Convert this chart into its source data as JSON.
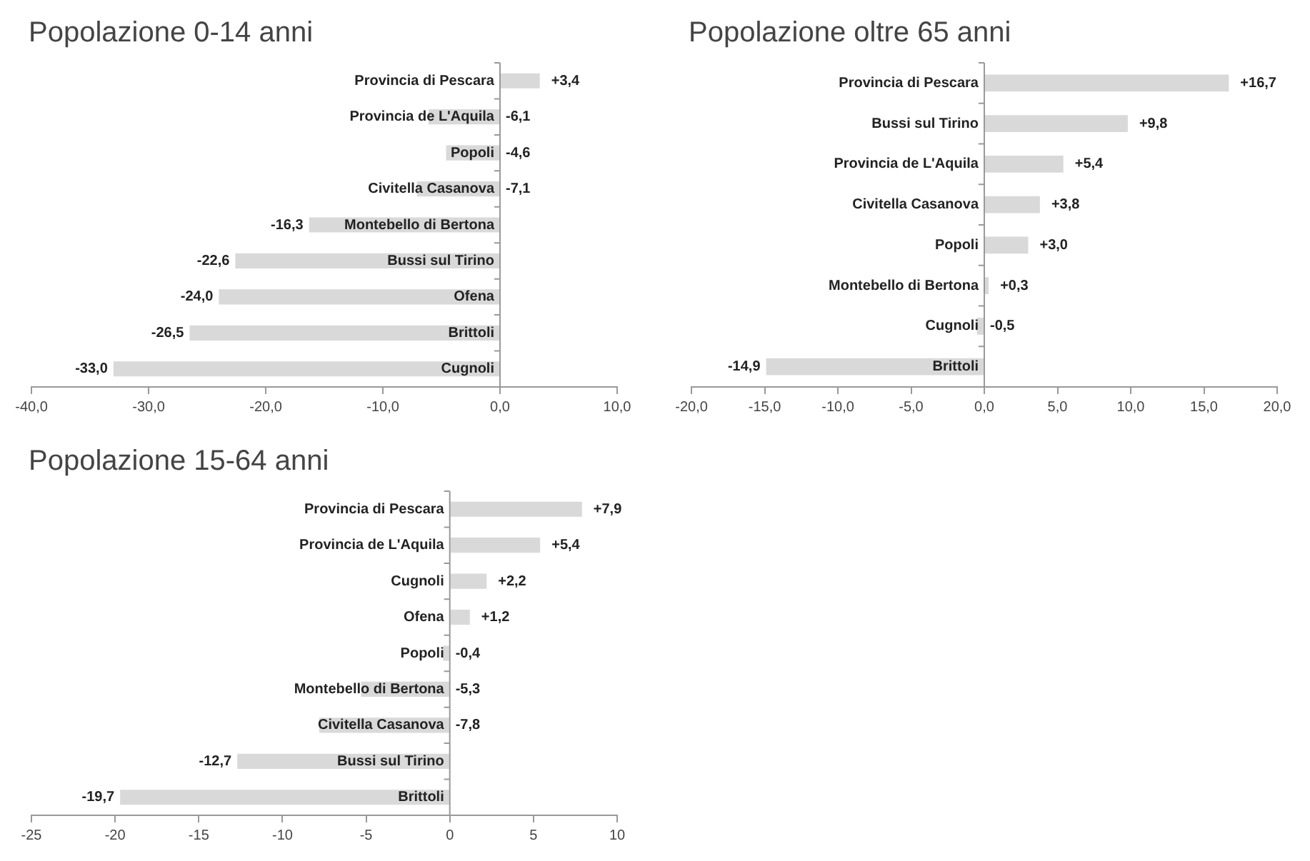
{
  "chart_data": [
    {
      "type": "bar",
      "orientation": "horizontal",
      "title": "Popolazione 0-14 anni",
      "color": "#d9d9d9",
      "categories": [
        "Provincia di Pescara",
        "Provincia de L'Aquila",
        "Popoli",
        "Civitella Casanova",
        "Montebello di Bertona",
        "Bussi sul Tirino",
        "Ofena",
        "Brittoli",
        "Cugnoli"
      ],
      "values": [
        3.4,
        -6.1,
        -4.6,
        -7.1,
        -16.3,
        -22.6,
        -24.0,
        -26.5,
        -33.0
      ],
      "value_labels": [
        "+3,4",
        "-6,1",
        "-4,6",
        "-7,1",
        "-16,3",
        "-22,6",
        "-24,0",
        "-26,5",
        "-33,0"
      ],
      "xlim": [
        -40,
        10
      ],
      "xticks": [
        {
          "value": -40,
          "label": "-40,0"
        },
        {
          "value": -30,
          "label": "-30,0"
        },
        {
          "value": -20,
          "label": "-20,0"
        },
        {
          "value": -10,
          "label": "-10,0"
        },
        {
          "value": 0,
          "label": "0,0"
        },
        {
          "value": 10,
          "label": "10,0"
        }
      ]
    },
    {
      "type": "bar",
      "orientation": "horizontal",
      "title": "Popolazione oltre 65 anni",
      "color": "#d9d9d9",
      "categories": [
        "Provincia di Pescara",
        "Bussi sul Tirino",
        "Provincia de L'Aquila",
        "Civitella Casanova",
        "Popoli",
        "Montebello di Bertona",
        "Cugnoli",
        "Brittoli"
      ],
      "values": [
        16.7,
        9.8,
        5.4,
        3.8,
        3.0,
        0.3,
        -0.5,
        -14.9
      ],
      "value_labels": [
        "+16,7",
        "+9,8",
        "+5,4",
        "+3,8",
        "+3,0",
        "+0,3",
        "-0,5",
        "-14,9"
      ],
      "xlim": [
        -20,
        20
      ],
      "xticks": [
        {
          "value": -20,
          "label": "-20,0"
        },
        {
          "value": -15,
          "label": "-15,0"
        },
        {
          "value": -10,
          "label": "-10,0"
        },
        {
          "value": -5,
          "label": "-5,0"
        },
        {
          "value": 0,
          "label": "0,0"
        },
        {
          "value": 5,
          "label": "5,0"
        },
        {
          "value": 10,
          "label": "10,0"
        },
        {
          "value": 15,
          "label": "15,0"
        },
        {
          "value": 20,
          "label": "20,0"
        }
      ]
    },
    {
      "type": "bar",
      "orientation": "horizontal",
      "title": "Popolazione 15-64 anni",
      "color": "#d9d9d9",
      "categories": [
        "Provincia di Pescara",
        "Provincia de L'Aquila",
        "Cugnoli",
        "Ofena",
        "Popoli",
        "Montebello di Bertona",
        "Civitella Casanova",
        "Bussi sul Tirino",
        "Brittoli"
      ],
      "values": [
        7.9,
        5.4,
        2.2,
        1.2,
        -0.4,
        -5.3,
        -7.8,
        -12.7,
        -19.7
      ],
      "value_labels": [
        "+7,9",
        "+5,4",
        "+2,2",
        "+1,2",
        "-0,4",
        "-5,3",
        "-7,8",
        "-12,7",
        "-19,7"
      ],
      "xlim": [
        -25,
        10
      ],
      "xticks": [
        -25,
        -20,
        -15,
        -10,
        -5,
        0,
        5,
        10
      ]
    }
  ]
}
